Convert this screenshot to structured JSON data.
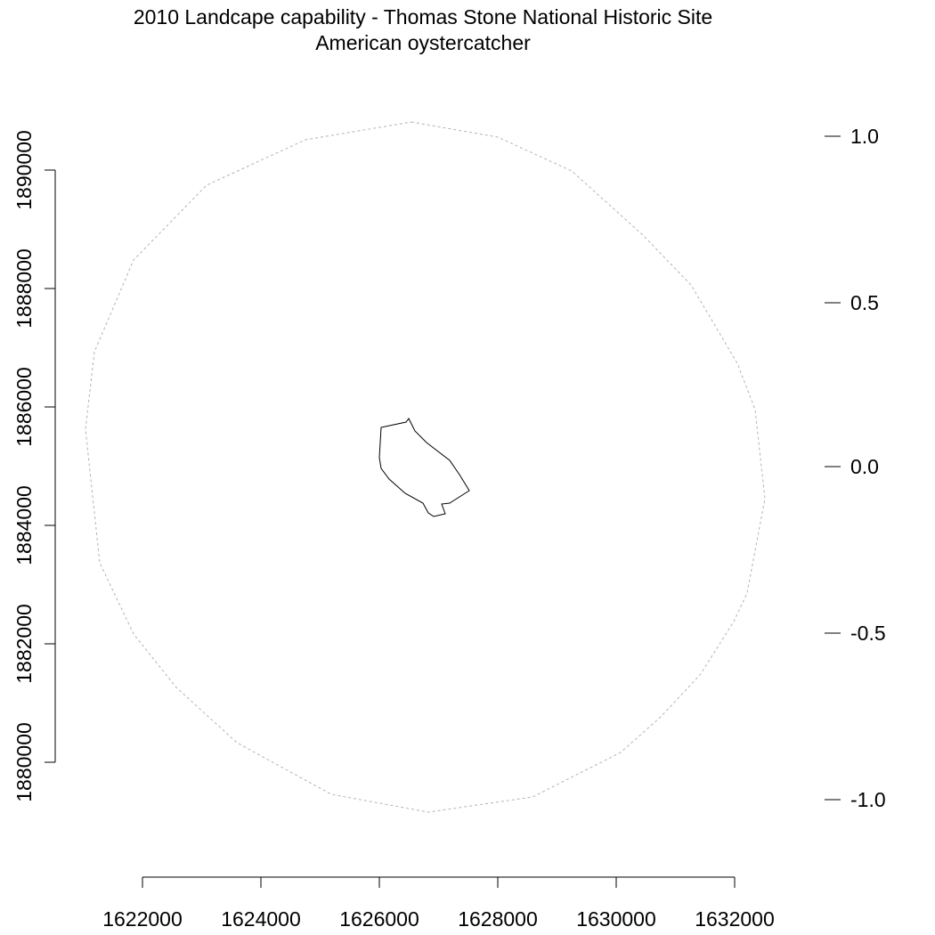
{
  "title_line1": "2010 Landcape capability - Thomas Stone National Historic Site",
  "title_line2": "American oystercatcher",
  "x_axis": {
    "ticks": [
      "1622000",
      "1624000",
      "1626000",
      "1628000",
      "1630000",
      "1632000"
    ]
  },
  "y_axis_left": {
    "ticks": [
      "1880000",
      "1882000",
      "1884000",
      "1886000",
      "1888000",
      "1890000"
    ]
  },
  "y_axis_right": {
    "ticks": [
      "-1.0",
      "-0.5",
      "0.0",
      "0.5",
      "1.0"
    ]
  },
  "colors": {
    "boundary": "#000000",
    "buffer_circle": "#b3b3b3"
  }
}
